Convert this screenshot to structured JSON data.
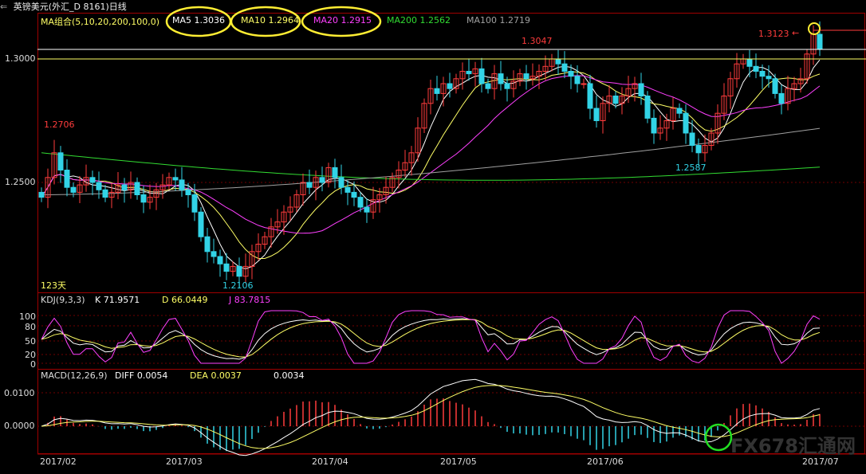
{
  "window": {
    "title": "英镑美元(外汇_D 8161)日线"
  },
  "main_panel": {
    "header": {
      "group_label": "MA组合(5,10,20,200,100,0)",
      "ma5": "MA5 1.3036",
      "ma10": "MA10 1.2964",
      "ma20": "MA20 1.2915",
      "ma200": "MA200 1.2562",
      "ma100": "MA100 1.2719"
    },
    "annotations": {
      "high_label": "1.3047",
      "low_label": "1.2106",
      "left_label": "1.2706",
      "dip_label": "1.2587",
      "last_high_label": "1.3123",
      "arrow_text": "←",
      "days_label": "123天"
    },
    "price_axis": [
      "1.3000",
      "1.2500"
    ]
  },
  "kdj_panel": {
    "label": "KDJ(9,3,3)",
    "k": "K  71.9571",
    "d": "D  66.0449",
    "j": "J  83.7815",
    "axis": [
      "100",
      "80",
      "50",
      "20",
      "0"
    ]
  },
  "macd_panel": {
    "label": "MACD(12,26,9)",
    "diff": "DIFF  0.0054",
    "dea": "DEA  0.0037",
    "hist": "0.0034",
    "axis": [
      "0.0100",
      "0.0000"
    ]
  },
  "x_axis": [
    "2017/02",
    "2017/03",
    "2017/04",
    "2017/05",
    "2017/06",
    "2017/07"
  ],
  "watermark": {
    "prefix": "FX678",
    "suffix": "汇通网"
  },
  "colors": {
    "up": "#ff3c3c",
    "down": "#32d3e6",
    "ma5": "#ffffff",
    "ma10": "#ffff66",
    "ma20": "#ff40ff",
    "ma200": "#32dc32",
    "ma100": "#a0a0a0",
    "highlight_circle": "#ffee33",
    "green_circle": "#22dd22"
  },
  "chart_data": {
    "type": "candlestick",
    "title": "英镑美元(外汇_D 8161)日线",
    "x_ticks": [
      "2017/02",
      "2017/03",
      "2017/04",
      "2017/05",
      "2017/06",
      "2017/07"
    ],
    "price_range": [
      1.195,
      1.3185
    ],
    "ohlc_closes": [
      1.244,
      1.252,
      1.262,
      1.255,
      1.248,
      1.246,
      1.249,
      1.252,
      1.25,
      1.247,
      1.244,
      1.246,
      1.249,
      1.247,
      1.25,
      1.245,
      1.242,
      1.244,
      1.247,
      1.249,
      1.252,
      1.251,
      1.247,
      1.245,
      1.238,
      1.228,
      1.222,
      1.22,
      1.217,
      1.214,
      1.216,
      1.212,
      1.216,
      1.222,
      1.225,
      1.228,
      1.232,
      1.234,
      1.238,
      1.24,
      1.245,
      1.25,
      1.248,
      1.252,
      1.25,
      1.256,
      1.252,
      1.248,
      1.246,
      1.244,
      1.24,
      1.238,
      1.243,
      1.245,
      1.248,
      1.252,
      1.255,
      1.258,
      1.262,
      1.272,
      1.282,
      1.288,
      1.286,
      1.29,
      1.288,
      1.292,
      1.295,
      1.294,
      1.296,
      1.29,
      1.288,
      1.294,
      1.29,
      1.288,
      1.291,
      1.294,
      1.292,
      1.293,
      1.295,
      1.297,
      1.3,
      1.298,
      1.295,
      1.293,
      1.29,
      1.29,
      1.28,
      1.275,
      1.282,
      1.285,
      1.282,
      1.285,
      1.288,
      1.29,
      1.285,
      1.276,
      1.27,
      1.272,
      1.275,
      1.28,
      1.278,
      1.27,
      1.265,
      1.262,
      1.265,
      1.27,
      1.278,
      1.285,
      1.292,
      1.298,
      1.3,
      1.297,
      1.295,
      1.293,
      1.292,
      1.286,
      1.282,
      1.288,
      1.29,
      1.292,
      1.302,
      1.31,
      1.304
    ],
    "ma_lines": [
      "MA5",
      "MA10",
      "MA20",
      "MA100",
      "MA200"
    ],
    "ma_values": {
      "MA5": 1.3036,
      "MA10": 1.2964,
      "MA20": 1.2915,
      "MA200": 1.2562,
      "MA100": 1.2719
    },
    "annotated_prices": {
      "high": 1.3047,
      "low": 1.2106,
      "left": 1.2706,
      "dip": 1.2587,
      "last_high": 1.3123
    },
    "indicators": {
      "KDJ": {
        "K": 71.9571,
        "D": 66.0449,
        "J": 83.7815,
        "ylim": [
          0,
          100
        ]
      },
      "MACD": {
        "DIFF": 0.0054,
        "DEA": 0.0037,
        "MACD": 0.0034,
        "ylim": [
          -0.008,
          0.013
        ]
      }
    }
  }
}
